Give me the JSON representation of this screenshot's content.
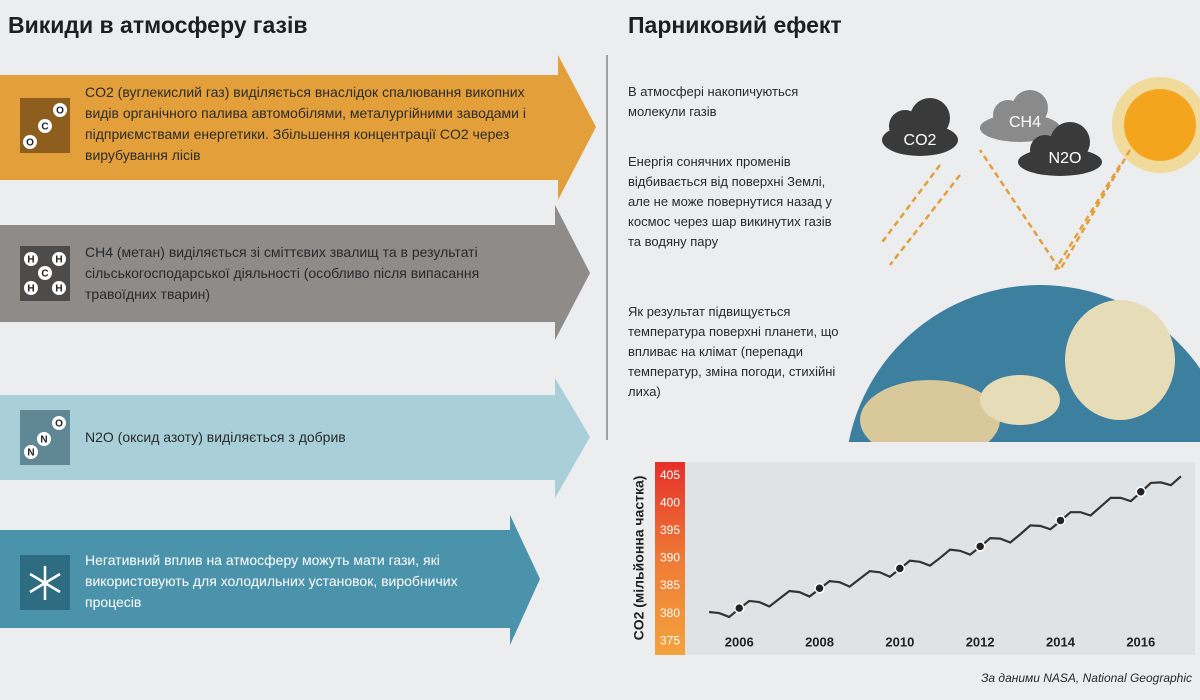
{
  "left": {
    "title": "Викиди в атмосферу газів",
    "items": [
      {
        "icon_labels": [
          "O",
          "C",
          "O"
        ],
        "text": "CO2 (вуглекислий газ) виділяється внаслідок спалювання викопних видів органічного палива автомобілями, металургійними заводами і підприємствами енергетики. Збільшення концентрації CO2 через вирубування лісів"
      },
      {
        "icon_labels": [
          "H",
          "H",
          "C",
          "H",
          "H"
        ],
        "text": "CH4 (метан) виділяється зі сміттєвих звалищ та в результаті сільськогосподарської діяльності (особливо після випасання травоїдних тварин)"
      },
      {
        "icon_labels": [
          "N",
          "N",
          "O"
        ],
        "text": "N2O (оксид азоту) виділяється з добрив"
      },
      {
        "text": "Негативний вплив на атмосферу можуть мати гази, які використовують для холодильних установок, виробничих процесів"
      }
    ]
  },
  "right": {
    "title": "Парниковий ефект",
    "paragraphs": [
      "В атмосфері накопичуються молекули газів",
      "Енергія сонячних променів відбивається від поверхні Землі, але не може повернутися назад у космос через шар викинутих газів та водяну пару",
      "Як результат підвищується температура поверхні планети, що впливає на клімат (перепади температур, зміна погоди, стихійні лиха)"
    ],
    "clouds": [
      "CO2",
      "CH4",
      "N2O"
    ]
  },
  "chart_data": {
    "type": "line",
    "ylabel": "CO2 (мільйонна частка)",
    "x": [
      2005.25,
      2005.5,
      2005.75,
      2006,
      2006.25,
      2006.5,
      2006.75,
      2007,
      2007.25,
      2007.5,
      2007.75,
      2008,
      2008.25,
      2008.5,
      2008.75,
      2009,
      2009.25,
      2009.5,
      2009.75,
      2010,
      2010.25,
      2010.5,
      2010.75,
      2011,
      2011.25,
      2011.5,
      2011.75,
      2012,
      2012.25,
      2012.5,
      2012.75,
      2013,
      2013.25,
      2013.5,
      2013.75,
      2014,
      2014.25,
      2014.5,
      2014.75,
      2015,
      2015.25,
      2015.5,
      2015.75,
      2016,
      2016.25,
      2016.5,
      2016.75,
      2017
    ],
    "series": [
      {
        "color": "#333333",
        "values": [
          380.3,
          380.1,
          379.4,
          380.9,
          382.3,
          382.1,
          381.3,
          382.7,
          384.1,
          383.9,
          383.1,
          384.5,
          385.9,
          385.7,
          384.9,
          386.3,
          387.7,
          387.5,
          386.7,
          388.1,
          389.6,
          389.4,
          388.7,
          390.1,
          391.6,
          391.4,
          390.7,
          392.1,
          393.7,
          393.6,
          392.9,
          394.4,
          396.0,
          395.9,
          395.3,
          396.8,
          398.4,
          398.4,
          397.8,
          399.4,
          401.0,
          401.0,
          400.4,
          402.0,
          403.7,
          403.8,
          403.3,
          404.9
        ]
      }
    ],
    "points": {
      "x": [
        2006,
        2008,
        2010,
        2012,
        2014,
        2016
      ],
      "values": [
        381,
        384.6,
        388.2,
        392.2,
        396.9,
        402.1
      ]
    },
    "xlim": [
      2004.6,
      2017.3
    ],
    "ylim": [
      372.5,
      407.5
    ],
    "xticks": [
      2006,
      2008,
      2010,
      2012,
      2014,
      2016
    ],
    "yticks": [
      375,
      380,
      385,
      390,
      395,
      400,
      405
    ]
  },
  "footer": "За даними NASA, National Geographic"
}
